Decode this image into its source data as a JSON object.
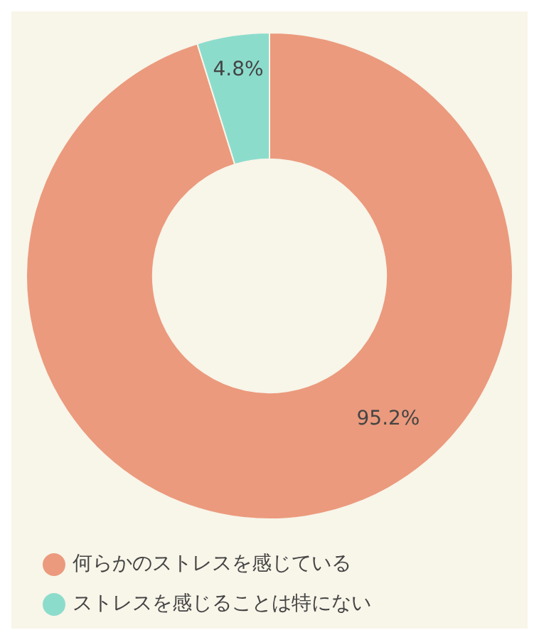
{
  "chart_data": {
    "type": "donut",
    "categories": [
      "何らかのストレスを感じている",
      "ストレスを感じることは特にない"
    ],
    "values": [
      95.2,
      4.8
    ],
    "colors": [
      "#eb9a7d",
      "#8cdccc"
    ],
    "value_labels": [
      "95.2%",
      "4.8%"
    ],
    "legend": "bottom"
  }
}
